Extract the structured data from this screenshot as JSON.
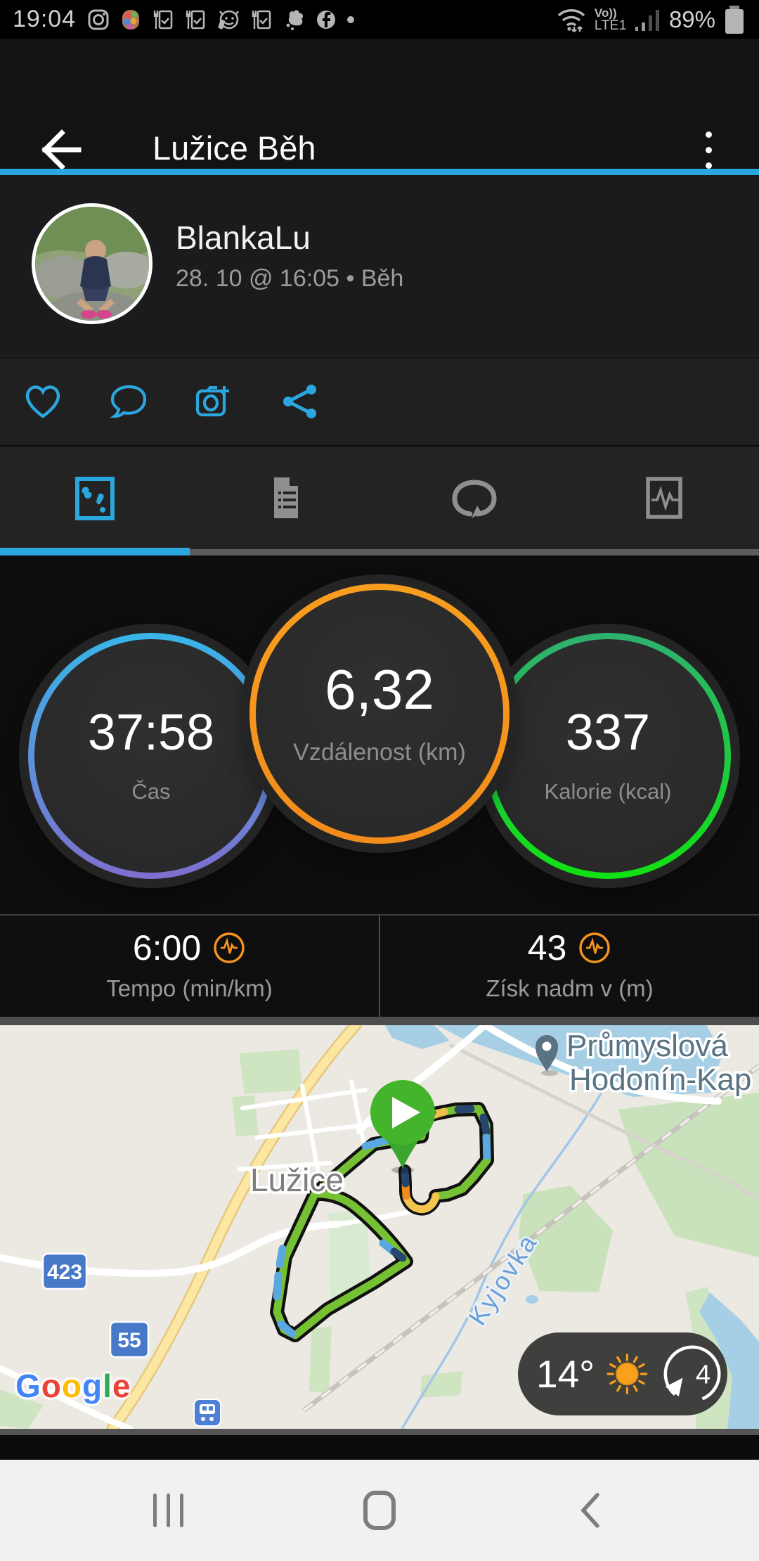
{
  "status_bar": {
    "time": "19:04",
    "volte_label": "Vo))",
    "network_label": "LTE1",
    "battery_percent": "89%",
    "notification_icons": [
      "instagram-icon",
      "bubbles-app-icon",
      "meal-checklist-icon",
      "meal-checklist-icon",
      "face-app-icon",
      "meal-checklist-icon",
      "paw-icon",
      "facebook-icon",
      "notification-dot-icon"
    ]
  },
  "header": {
    "title": "Lužice Běh"
  },
  "profile": {
    "name": "BlankaLu",
    "meta": "28. 10 @ 16:05 • Běh"
  },
  "actions": {
    "icons": [
      "like",
      "comment",
      "add-photo",
      "share"
    ]
  },
  "tabs": {
    "items": [
      "overview",
      "details",
      "laps",
      "charts"
    ],
    "active_index": 0
  },
  "metrics": {
    "circles": [
      {
        "value": "37:58",
        "label": "Čas",
        "ring_top": "#38B5E8",
        "ring_bottom": "#7E6FCE"
      },
      {
        "value": "6,32",
        "label": "Vzdálenost (km)",
        "ring_top": "#F89E1F",
        "ring_bottom": "#F28C1C"
      },
      {
        "value": "337",
        "label": "Kalorie (kcal)",
        "ring_top": "#2FB070",
        "ring_bottom": "#10E212"
      }
    ]
  },
  "stats": [
    {
      "value": "6:00",
      "label": "Tempo (min/km)"
    },
    {
      "value": "43",
      "label": "Získ nadm v (m)"
    }
  ],
  "map": {
    "town_label": "Lužice",
    "poi_label_line1": "Průmyslová",
    "poi_label_line2": "Hodonín-Kap",
    "river_label": "Kyjovka",
    "road_badges": [
      "423",
      "55"
    ],
    "attribution_letters": [
      {
        "ch": "G",
        "color": "#4285F4"
      },
      {
        "ch": "o",
        "color": "#EA4335"
      },
      {
        "ch": "o",
        "color": "#FBBC05"
      },
      {
        "ch": "g",
        "color": "#4285F4"
      },
      {
        "ch": "l",
        "color": "#34A853"
      },
      {
        "ch": "e",
        "color": "#EA4335"
      }
    ],
    "weather": {
      "temperature": "14°",
      "wind_value": "4"
    }
  },
  "colors": {
    "accent_blue": "#2BA7E0",
    "garmin_orange": "#F7941E",
    "route_green": "#76C133"
  }
}
